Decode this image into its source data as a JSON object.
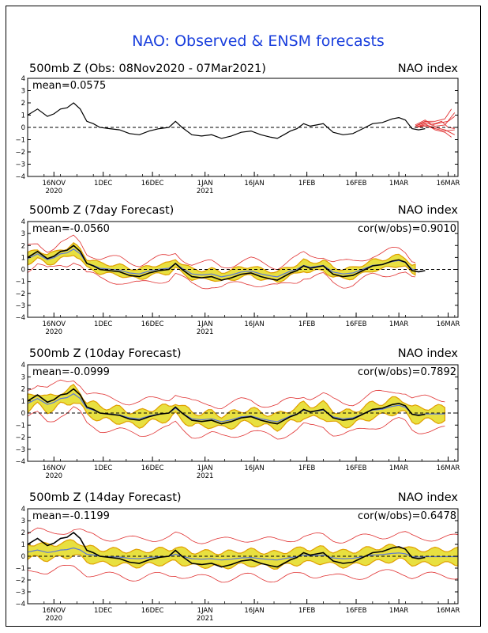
{
  "figure": {
    "title": "NAO: Observed & ENSM forecasts",
    "colors": {
      "observed": "#000000",
      "spread": "#e8e040",
      "ens_max": "#e0a000",
      "members": "#e03030",
      "ens_mean": "#5a78d8",
      "title": "#1a3fdd"
    }
  },
  "x_axis": {
    "labels": [
      {
        "day": 8,
        "label": "16NOV",
        "year": "2020"
      },
      {
        "day": 23,
        "label": "1DEC",
        "year": ""
      },
      {
        "day": 38,
        "label": "16DEC",
        "year": ""
      },
      {
        "day": 54,
        "label": "1JAN",
        "year": "2021"
      },
      {
        "day": 69,
        "label": "16JAN",
        "year": ""
      },
      {
        "day": 85,
        "label": "1FEB",
        "year": ""
      },
      {
        "day": 100,
        "label": "16FEB",
        "year": ""
      },
      {
        "day": 113,
        "label": "1MAR",
        "year": ""
      },
      {
        "day": 128,
        "label": "16MAR",
        "year": ""
      }
    ]
  },
  "chart_data": [
    {
      "type": "line",
      "title": "500mb Z (Obs: 08Nov2020 - 07Mar2021)",
      "right_label": "NAO index",
      "stat_left": "mean=0.0575",
      "stat_right": "",
      "x_unit": "days since 08Nov2020",
      "xlim": [
        0,
        131
      ],
      "ylim": [
        -4,
        4
      ],
      "yticks": [
        4,
        3,
        2,
        1,
        0,
        -1,
        -2,
        -3,
        -4
      ],
      "observed": [
        [
          0,
          1.0
        ],
        [
          3,
          1.5
        ],
        [
          6,
          0.9
        ],
        [
          8,
          1.1
        ],
        [
          10,
          1.5
        ],
        [
          12,
          1.6
        ],
        [
          14,
          2.0
        ],
        [
          16,
          1.5
        ],
        [
          18,
          0.5
        ],
        [
          20,
          0.3
        ],
        [
          22,
          0.0
        ],
        [
          25,
          -0.1
        ],
        [
          28,
          -0.2
        ],
        [
          31,
          -0.5
        ],
        [
          34,
          -0.6
        ],
        [
          37,
          -0.3
        ],
        [
          40,
          -0.1
        ],
        [
          43,
          0.0
        ],
        [
          45,
          0.5
        ],
        [
          47,
          0.0
        ],
        [
          50,
          -0.6
        ],
        [
          53,
          -0.7
        ],
        [
          56,
          -0.6
        ],
        [
          59,
          -0.9
        ],
        [
          62,
          -0.7
        ],
        [
          65,
          -0.4
        ],
        [
          68,
          -0.3
        ],
        [
          71,
          -0.6
        ],
        [
          74,
          -0.8
        ],
        [
          76,
          -0.9
        ],
        [
          78,
          -0.6
        ],
        [
          80,
          -0.3
        ],
        [
          82,
          -0.1
        ],
        [
          84,
          0.3
        ],
        [
          86,
          0.1
        ],
        [
          88,
          0.2
        ],
        [
          90,
          0.3
        ],
        [
          93,
          -0.4
        ],
        [
          96,
          -0.6
        ],
        [
          99,
          -0.5
        ],
        [
          102,
          -0.1
        ],
        [
          105,
          0.3
        ],
        [
          108,
          0.4
        ],
        [
          111,
          0.7
        ],
        [
          113,
          0.8
        ],
        [
          115,
          0.6
        ],
        [
          117,
          -0.1
        ],
        [
          119,
          -0.2
        ],
        [
          121,
          -0.1
        ]
      ],
      "members": [
        [
          [
            118,
            0.1
          ],
          [
            121,
            0.5
          ],
          [
            124,
            0.3
          ],
          [
            126,
            0.5
          ],
          [
            128,
            0.0
          ],
          [
            130,
            -0.1
          ]
        ],
        [
          [
            118,
            0.2
          ],
          [
            121,
            0.6
          ],
          [
            123,
            0.2
          ],
          [
            126,
            0.4
          ],
          [
            128,
            0.5
          ],
          [
            130,
            0.9
          ]
        ],
        [
          [
            118,
            0.0
          ],
          [
            121,
            0.3
          ],
          [
            124,
            -0.2
          ],
          [
            127,
            -0.4
          ],
          [
            129,
            -0.8
          ]
        ],
        [
          [
            118,
            0.1
          ],
          [
            121,
            0.4
          ],
          [
            124,
            0.1
          ],
          [
            127,
            0.2
          ],
          [
            130,
            1.2
          ]
        ],
        [
          [
            118,
            0.0
          ],
          [
            121,
            0.2
          ],
          [
            124,
            0.0
          ],
          [
            127,
            -0.2
          ],
          [
            130,
            -0.6
          ]
        ],
        [
          [
            118,
            0.1
          ],
          [
            121,
            0.5
          ],
          [
            124,
            0.5
          ],
          [
            127,
            0.7
          ],
          [
            129,
            1.5
          ]
        ],
        [
          [
            118,
            0.0
          ],
          [
            121,
            0.1
          ],
          [
            124,
            -0.1
          ],
          [
            127,
            -0.3
          ],
          [
            130,
            -0.2
          ]
        ]
      ]
    },
    {
      "type": "area",
      "title": "500mb Z (7day Forecast)",
      "right_label": "NAO index",
      "stat_left": "mean=-0.0560",
      "stat_right": "cor(w/obs)=0.9010",
      "x_unit": "days since 08Nov2020",
      "xlim": [
        0,
        131
      ],
      "ylim": [
        -4,
        4
      ],
      "yticks": [
        4,
        3,
        2,
        1,
        0,
        -1,
        -2,
        -3,
        -4
      ],
      "observed": [
        [
          0,
          1.0
        ],
        [
          3,
          1.5
        ],
        [
          6,
          0.9
        ],
        [
          8,
          1.1
        ],
        [
          10,
          1.5
        ],
        [
          12,
          1.6
        ],
        [
          14,
          2.0
        ],
        [
          16,
          1.5
        ],
        [
          18,
          0.5
        ],
        [
          20,
          0.3
        ],
        [
          22,
          0.0
        ],
        [
          25,
          -0.1
        ],
        [
          28,
          -0.2
        ],
        [
          31,
          -0.5
        ],
        [
          34,
          -0.6
        ],
        [
          37,
          -0.3
        ],
        [
          40,
          -0.1
        ],
        [
          43,
          0.0
        ],
        [
          45,
          0.5
        ],
        [
          47,
          0.0
        ],
        [
          50,
          -0.6
        ],
        [
          53,
          -0.7
        ],
        [
          56,
          -0.6
        ],
        [
          59,
          -0.9
        ],
        [
          62,
          -0.7
        ],
        [
          65,
          -0.4
        ],
        [
          68,
          -0.3
        ],
        [
          71,
          -0.6
        ],
        [
          74,
          -0.8
        ],
        [
          76,
          -0.9
        ],
        [
          78,
          -0.6
        ],
        [
          80,
          -0.3
        ],
        [
          82,
          -0.1
        ],
        [
          84,
          0.3
        ],
        [
          86,
          0.1
        ],
        [
          88,
          0.2
        ],
        [
          90,
          0.3
        ],
        [
          93,
          -0.4
        ],
        [
          96,
          -0.6
        ],
        [
          99,
          -0.5
        ],
        [
          102,
          -0.1
        ],
        [
          105,
          0.3
        ],
        [
          108,
          0.4
        ],
        [
          111,
          0.7
        ],
        [
          113,
          0.8
        ],
        [
          115,
          0.6
        ],
        [
          117,
          -0.1
        ],
        [
          119,
          -0.2
        ],
        [
          121,
          -0.1
        ]
      ],
      "band": {
        "start": 0,
        "end": 118,
        "offset": 0.1,
        "width": 0.4,
        "jitter": 0.15
      },
      "envelope": {
        "width": 0.9
      }
    },
    {
      "type": "area",
      "title": "500mb Z (10day Forecast)",
      "right_label": "NAO index",
      "stat_left": "mean=-0.0999",
      "stat_right": "cor(w/obs)=0.7892",
      "x_unit": "days since 08Nov2020",
      "xlim": [
        0,
        131
      ],
      "ylim": [
        -4,
        4
      ],
      "yticks": [
        4,
        3,
        2,
        1,
        0,
        -1,
        -2,
        -3,
        -4
      ],
      "observed": [
        [
          0,
          1.0
        ],
        [
          3,
          1.5
        ],
        [
          6,
          0.9
        ],
        [
          8,
          1.1
        ],
        [
          10,
          1.5
        ],
        [
          12,
          1.6
        ],
        [
          14,
          2.0
        ],
        [
          16,
          1.5
        ],
        [
          18,
          0.5
        ],
        [
          20,
          0.3
        ],
        [
          22,
          0.0
        ],
        [
          25,
          -0.1
        ],
        [
          28,
          -0.2
        ],
        [
          31,
          -0.5
        ],
        [
          34,
          -0.6
        ],
        [
          37,
          -0.3
        ],
        [
          40,
          -0.1
        ],
        [
          43,
          0.0
        ],
        [
          45,
          0.5
        ],
        [
          47,
          0.0
        ],
        [
          50,
          -0.6
        ],
        [
          53,
          -0.7
        ],
        [
          56,
          -0.6
        ],
        [
          59,
          -0.9
        ],
        [
          62,
          -0.7
        ],
        [
          65,
          -0.4
        ],
        [
          68,
          -0.3
        ],
        [
          71,
          -0.6
        ],
        [
          74,
          -0.8
        ],
        [
          76,
          -0.9
        ],
        [
          78,
          -0.6
        ],
        [
          80,
          -0.3
        ],
        [
          82,
          -0.1
        ],
        [
          84,
          0.3
        ],
        [
          86,
          0.1
        ],
        [
          88,
          0.2
        ],
        [
          90,
          0.3
        ],
        [
          93,
          -0.4
        ],
        [
          96,
          -0.6
        ],
        [
          99,
          -0.5
        ],
        [
          102,
          -0.1
        ],
        [
          105,
          0.3
        ],
        [
          108,
          0.4
        ],
        [
          111,
          0.7
        ],
        [
          113,
          0.8
        ],
        [
          115,
          0.6
        ],
        [
          117,
          -0.1
        ],
        [
          119,
          -0.2
        ],
        [
          121,
          -0.1
        ]
      ],
      "band": {
        "start": 0,
        "end": 127,
        "offset": 0.0,
        "width": 0.55,
        "jitter": 0.25
      },
      "envelope": {
        "width": 1.3
      }
    },
    {
      "type": "area",
      "title": "500mb Z (14day Forecast)",
      "right_label": "NAO index",
      "stat_left": "mean=-0.1199",
      "stat_right": "cor(w/obs)=0.6478",
      "x_unit": "days since 08Nov2020",
      "xlim": [
        0,
        131
      ],
      "ylim": [
        -4,
        4
      ],
      "yticks": [
        4,
        3,
        2,
        1,
        0,
        -1,
        -2,
        -3,
        -4
      ],
      "observed": [
        [
          0,
          1.0
        ],
        [
          3,
          1.5
        ],
        [
          6,
          0.9
        ],
        [
          8,
          1.1
        ],
        [
          10,
          1.5
        ],
        [
          12,
          1.6
        ],
        [
          14,
          2.0
        ],
        [
          16,
          1.5
        ],
        [
          18,
          0.5
        ],
        [
          20,
          0.3
        ],
        [
          22,
          0.0
        ],
        [
          25,
          -0.1
        ],
        [
          28,
          -0.2
        ],
        [
          31,
          -0.5
        ],
        [
          34,
          -0.6
        ],
        [
          37,
          -0.3
        ],
        [
          40,
          -0.1
        ],
        [
          43,
          0.0
        ],
        [
          45,
          0.5
        ],
        [
          47,
          0.0
        ],
        [
          50,
          -0.6
        ],
        [
          53,
          -0.7
        ],
        [
          56,
          -0.6
        ],
        [
          59,
          -0.9
        ],
        [
          62,
          -0.7
        ],
        [
          65,
          -0.4
        ],
        [
          68,
          -0.3
        ],
        [
          71,
          -0.6
        ],
        [
          74,
          -0.8
        ],
        [
          76,
          -0.9
        ],
        [
          78,
          -0.6
        ],
        [
          80,
          -0.3
        ],
        [
          82,
          -0.1
        ],
        [
          84,
          0.3
        ],
        [
          86,
          0.1
        ],
        [
          88,
          0.2
        ],
        [
          90,
          0.3
        ],
        [
          93,
          -0.4
        ],
        [
          96,
          -0.6
        ],
        [
          99,
          -0.5
        ],
        [
          102,
          -0.1
        ],
        [
          105,
          0.3
        ],
        [
          108,
          0.4
        ],
        [
          111,
          0.7
        ],
        [
          113,
          0.8
        ],
        [
          115,
          0.6
        ],
        [
          117,
          -0.1
        ],
        [
          119,
          -0.2
        ],
        [
          121,
          -0.1
        ]
      ],
      "band": {
        "start": 0,
        "end": 131,
        "offset": 0.0,
        "width": 0.6,
        "jitter": 0.2
      },
      "envelope": {
        "width": 1.6
      }
    }
  ]
}
